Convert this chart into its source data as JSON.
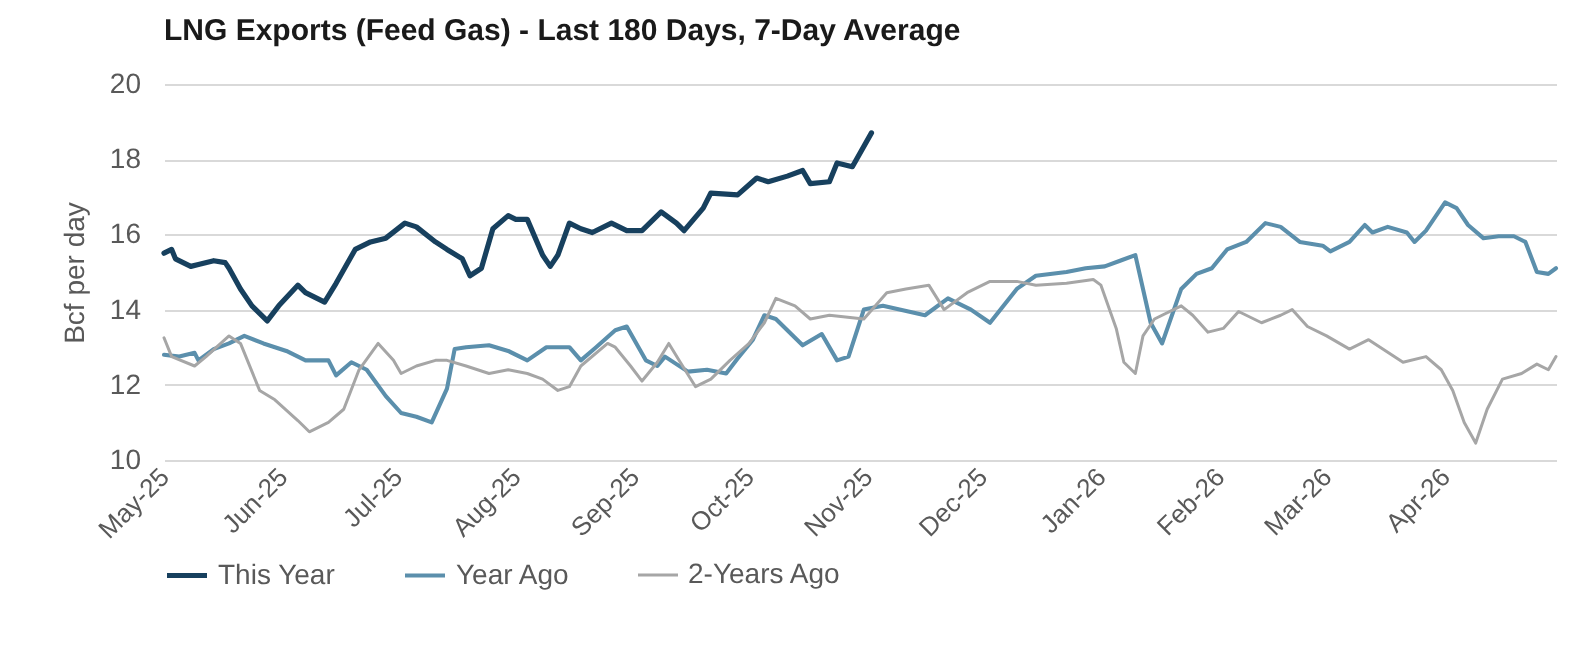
{
  "chart_data": {
    "type": "line",
    "title": "LNG Exports (Feed Gas) - Last 180 Days, 7-Day Average",
    "ylabel": "Bcf per day",
    "xlim": [
      "2025-05-01",
      "2026-04-30"
    ],
    "xticks": [
      {
        "value": "2025-05-01",
        "label": "May-25"
      },
      {
        "value": "2025-06-01",
        "label": "Jun-25"
      },
      {
        "value": "2025-07-01",
        "label": "Jul-25"
      },
      {
        "value": "2025-08-01",
        "label": "Aug-25"
      },
      {
        "value": "2025-09-01",
        "label": "Sep-25"
      },
      {
        "value": "2025-10-01",
        "label": "Oct-25"
      },
      {
        "value": "2025-11-01",
        "label": "Nov-25"
      },
      {
        "value": "2025-12-01",
        "label": "Dec-25"
      },
      {
        "value": "2026-01-01",
        "label": "Jan-26"
      },
      {
        "value": "2026-02-01",
        "label": "Feb-26"
      },
      {
        "value": "2026-03-01",
        "label": "Mar-26"
      },
      {
        "value": "2026-04-01",
        "label": "Apr-26"
      }
    ],
    "ylim": [
      10,
      20
    ],
    "yticks": [
      10,
      12,
      14,
      16,
      18,
      20
    ],
    "grid": "y",
    "legend": "bottom",
    "series": [
      {
        "name": "This Year",
        "color": "#17405e",
        "x": [
          "2025-05-01",
          "2025-05-03",
          "2025-05-04",
          "2025-05-08",
          "2025-05-10",
          "2025-05-14",
          "2025-05-17",
          "2025-05-18",
          "2025-05-21",
          "2025-05-24",
          "2025-05-26",
          "2025-05-28",
          "2025-05-31",
          "2025-06-05",
          "2025-06-07",
          "2025-06-12",
          "2025-06-15",
          "2025-06-20",
          "2025-06-24",
          "2025-06-28",
          "2025-07-03",
          "2025-07-06",
          "2025-07-11",
          "2025-07-14",
          "2025-07-18",
          "2025-07-20",
          "2025-07-23",
          "2025-07-26",
          "2025-07-30",
          "2025-08-01",
          "2025-08-04",
          "2025-08-08",
          "2025-08-10",
          "2025-08-12",
          "2025-08-15",
          "2025-08-18",
          "2025-08-21",
          "2025-08-26",
          "2025-08-30",
          "2025-09-03",
          "2025-09-08",
          "2025-09-12",
          "2025-09-14",
          "2025-09-19",
          "2025-09-21",
          "2025-09-28",
          "2025-10-03",
          "2025-10-06",
          "2025-10-11",
          "2025-10-15",
          "2025-10-17",
          "2025-10-22",
          "2025-10-24",
          "2025-10-28",
          "2025-11-02"
        ],
        "values": [
          15.5,
          15.6,
          15.35,
          15.15,
          15.2,
          15.3,
          15.25,
          15.1,
          14.55,
          14.1,
          13.9,
          13.7,
          14.1,
          14.65,
          14.45,
          14.2,
          14.7,
          15.6,
          15.8,
          15.9,
          16.3,
          16.2,
          15.8,
          15.6,
          15.35,
          14.9,
          15.1,
          16.15,
          16.5,
          16.4,
          16.4,
          15.45,
          15.15,
          15.45,
          16.3,
          16.15,
          16.05,
          16.3,
          16.1,
          16.1,
          16.6,
          16.3,
          16.1,
          16.7,
          17.1,
          17.05,
          17.5,
          17.4,
          17.55,
          17.7,
          17.35,
          17.4,
          17.9,
          17.8,
          18.7
        ]
      },
      {
        "name": "Year Ago",
        "color": "#5b8fac",
        "x": [
          "2025-05-01",
          "2025-05-05",
          "2025-05-09",
          "2025-05-10",
          "2025-05-14",
          "2025-05-18",
          "2025-05-22",
          "2025-05-27",
          "2025-06-02",
          "2025-06-07",
          "2025-06-13",
          "2025-06-15",
          "2025-06-19",
          "2025-06-23",
          "2025-06-28",
          "2025-07-02",
          "2025-07-06",
          "2025-07-10",
          "2025-07-14",
          "2025-07-16",
          "2025-07-19",
          "2025-07-25",
          "2025-07-30",
          "2025-08-04",
          "2025-08-09",
          "2025-08-15",
          "2025-08-18",
          "2025-08-22",
          "2025-08-27",
          "2025-08-30",
          "2025-09-04",
          "2025-09-07",
          "2025-09-09",
          "2025-09-15",
          "2025-09-20",
          "2025-09-25",
          "2025-09-28",
          "2025-10-02",
          "2025-10-05",
          "2025-10-08",
          "2025-10-15",
          "2025-10-20",
          "2025-10-24",
          "2025-10-27",
          "2025-10-31",
          "2025-11-05",
          "2025-11-16",
          "2025-11-22",
          "2025-11-28",
          "2025-12-03",
          "2025-12-10",
          "2025-12-15",
          "2025-12-23",
          "2025-12-28",
          "2026-01-02",
          "2026-01-06",
          "2026-01-10",
          "2026-01-14",
          "2026-01-17",
          "2026-01-22",
          "2026-01-26",
          "2026-01-30",
          "2026-02-03",
          "2026-02-08",
          "2026-02-13",
          "2026-02-17",
          "2026-02-22",
          "2026-02-28",
          "2026-03-02",
          "2026-03-07",
          "2026-03-11",
          "2026-03-13",
          "2026-03-17",
          "2026-03-22",
          "2026-03-24",
          "2026-03-27",
          "2026-04-01",
          "2026-04-04",
          "2026-04-07",
          "2026-04-11",
          "2026-04-15",
          "2026-04-19",
          "2026-04-22",
          "2026-04-25",
          "2026-04-28",
          "2026-04-30"
        ],
        "values": [
          12.8,
          12.75,
          12.85,
          12.65,
          12.95,
          13.1,
          13.3,
          13.1,
          12.9,
          12.65,
          12.65,
          12.25,
          12.6,
          12.4,
          11.7,
          11.25,
          11.15,
          11.0,
          11.9,
          12.95,
          13.0,
          13.05,
          12.9,
          12.65,
          13.0,
          13.0,
          12.65,
          13.0,
          13.45,
          13.55,
          12.65,
          12.5,
          12.75,
          12.35,
          12.4,
          12.3,
          12.7,
          13.2,
          13.85,
          13.75,
          13.05,
          13.35,
          12.65,
          12.75,
          14.0,
          14.1,
          13.85,
          14.3,
          14.0,
          13.65,
          14.55,
          14.9,
          15.0,
          15.1,
          15.15,
          15.3,
          15.45,
          13.65,
          13.1,
          14.55,
          14.95,
          15.1,
          15.6,
          15.8,
          16.3,
          16.2,
          15.8,
          15.7,
          15.55,
          15.8,
          16.25,
          16.05,
          16.2,
          16.05,
          15.8,
          16.1,
          16.85,
          16.7,
          16.25,
          15.9,
          15.95,
          15.95,
          15.8,
          15.0,
          14.95,
          15.1
        ]
      },
      {
        "name": "2-Years Ago",
        "color": "#a6a6a6",
        "x": [
          "2025-05-01",
          "2025-05-03",
          "2025-05-09",
          "2025-05-12",
          "2025-05-18",
          "2025-05-21",
          "2025-05-26",
          "2025-05-30",
          "2025-06-05",
          "2025-06-08",
          "2025-06-13",
          "2025-06-17",
          "2025-06-21",
          "2025-06-26",
          "2025-06-30",
          "2025-07-02",
          "2025-07-06",
          "2025-07-11",
          "2025-07-14",
          "2025-07-19",
          "2025-07-25",
          "2025-07-30",
          "2025-08-04",
          "2025-08-08",
          "2025-08-12",
          "2025-08-15",
          "2025-08-18",
          "2025-08-25",
          "2025-08-27",
          "2025-08-31",
          "2025-09-03",
          "2025-09-07",
          "2025-09-10",
          "2025-09-13",
          "2025-09-17",
          "2025-09-21",
          "2025-09-26",
          "2025-10-01",
          "2025-10-05",
          "2025-10-08",
          "2025-10-13",
          "2025-10-17",
          "2025-10-22",
          "2025-10-31",
          "2025-11-06",
          "2025-11-11",
          "2025-11-17",
          "2025-11-21",
          "2025-11-27",
          "2025-12-03",
          "2025-12-10",
          "2025-12-15",
          "2025-12-23",
          "2025-12-30",
          "2026-01-01",
          "2026-01-05",
          "2026-01-07",
          "2026-01-10",
          "2026-01-12",
          "2026-01-15",
          "2026-01-22",
          "2026-01-25",
          "2026-01-29",
          "2026-02-02",
          "2026-02-06",
          "2026-02-12",
          "2026-02-17",
          "2026-02-20",
          "2026-02-24",
          "2026-03-01",
          "2026-03-07",
          "2026-03-12",
          "2026-03-21",
          "2026-03-27",
          "2026-03-31",
          "2026-04-03",
          "2026-04-06",
          "2026-04-09",
          "2026-04-12",
          "2026-04-16",
          "2026-04-21",
          "2026-04-25",
          "2026-04-28",
          "2026-04-30"
        ],
        "values": [
          13.25,
          12.75,
          12.5,
          12.75,
          13.3,
          13.1,
          11.85,
          11.6,
          11.05,
          10.75,
          11.0,
          11.35,
          12.4,
          13.1,
          12.65,
          12.3,
          12.5,
          12.65,
          12.65,
          12.5,
          12.3,
          12.4,
          12.3,
          12.15,
          11.85,
          11.95,
          12.5,
          13.1,
          13.0,
          12.5,
          12.1,
          12.6,
          13.1,
          12.6,
          11.95,
          12.15,
          12.65,
          13.1,
          13.65,
          14.3,
          14.1,
          13.75,
          13.85,
          13.75,
          14.45,
          14.55,
          14.65,
          14.0,
          14.45,
          14.75,
          14.75,
          14.65,
          14.7,
          14.8,
          14.65,
          13.5,
          12.6,
          12.3,
          13.3,
          13.75,
          14.1,
          13.85,
          13.4,
          13.5,
          13.95,
          13.65,
          13.85,
          14.0,
          13.55,
          13.3,
          12.95,
          13.2,
          12.6,
          12.75,
          12.4,
          11.85,
          11.0,
          10.45,
          11.35,
          12.15,
          12.3,
          12.55,
          12.4,
          12.75
        ]
      }
    ]
  }
}
